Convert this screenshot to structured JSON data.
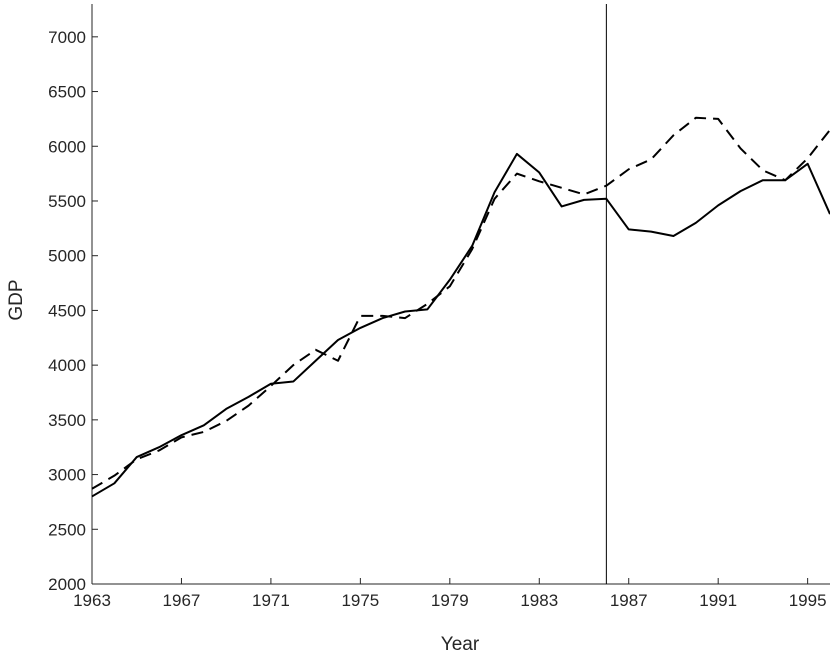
{
  "chart_data": {
    "type": "line",
    "xlabel": "Year",
    "ylabel": "GDP",
    "xlim": [
      1963,
      1996
    ],
    "ylim": [
      2000,
      7300
    ],
    "xticks": [
      1963,
      1967,
      1971,
      1975,
      1979,
      1983,
      1987,
      1991,
      1995
    ],
    "yticks": [
      2000,
      2500,
      3000,
      3500,
      4000,
      4500,
      5000,
      5500,
      6000,
      6500,
      7000
    ],
    "grid": false,
    "legend": "none",
    "vline_x": 1986,
    "x": [
      1963,
      1964,
      1965,
      1966,
      1967,
      1968,
      1969,
      1970,
      1971,
      1972,
      1973,
      1974,
      1975,
      1976,
      1977,
      1978,
      1979,
      1980,
      1981,
      1982,
      1983,
      1984,
      1985,
      1986,
      1987,
      1988,
      1989,
      1990,
      1991,
      1992,
      1993,
      1994,
      1995,
      1996
    ],
    "series": [
      {
        "style": "solid",
        "values": [
          2800,
          2920,
          3160,
          3250,
          3360,
          3450,
          3600,
          3710,
          3830,
          3850,
          4040,
          4230,
          4340,
          4430,
          4490,
          4510,
          4780,
          5090,
          5580,
          5930,
          5760,
          5450,
          5510,
          5520,
          5240,
          5220,
          5180,
          5300,
          5460,
          5590,
          5690,
          5690,
          5840,
          5380
        ]
      },
      {
        "style": "dashed",
        "values": [
          2870,
          2990,
          3140,
          3220,
          3340,
          3390,
          3490,
          3630,
          3810,
          4000,
          4140,
          4040,
          4450,
          4450,
          4430,
          4560,
          4720,
          5060,
          5520,
          5750,
          5680,
          5620,
          5560,
          5640,
          5790,
          5880,
          6100,
          6260,
          6250,
          5980,
          5780,
          5690,
          5890,
          6150
        ]
      }
    ]
  }
}
